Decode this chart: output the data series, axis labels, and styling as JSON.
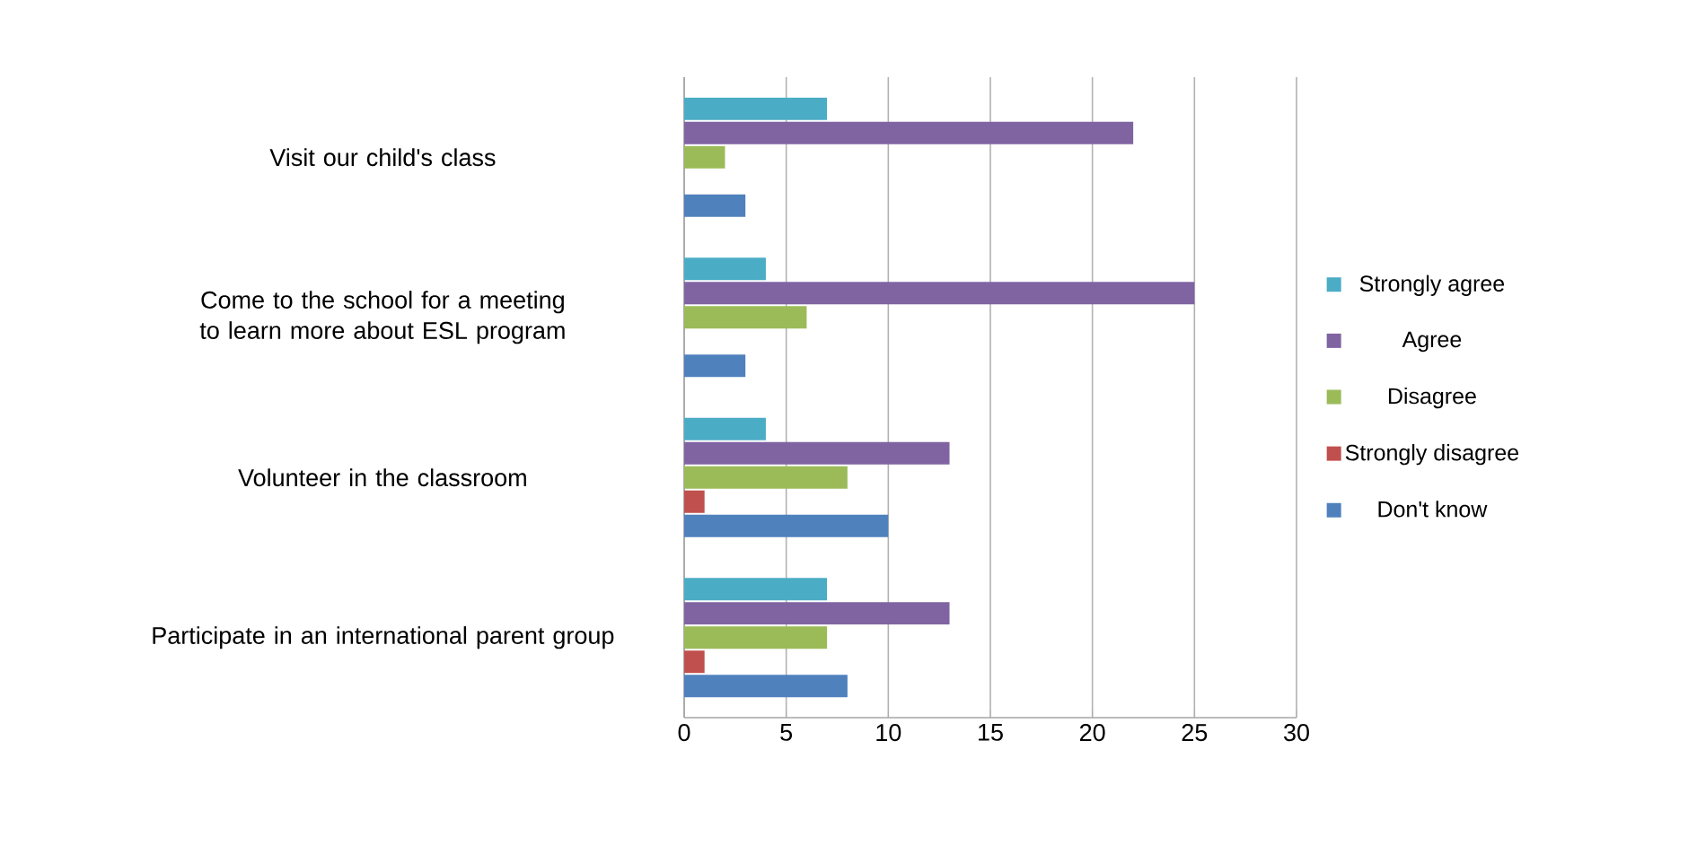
{
  "chart_data": {
    "type": "bar",
    "orientation": "horizontal",
    "categories": [
      "Visit our child's class",
      "Come to the school for a meeting to learn more about ESL program",
      "Volunteer in the classroom",
      "Participate in an international parent group"
    ],
    "series": [
      {
        "name": "Strongly agree",
        "color": "#4bacc6",
        "values": [
          7,
          4,
          4,
          7
        ]
      },
      {
        "name": "Agree",
        "color": "#8064a2",
        "values": [
          22,
          25,
          13,
          13
        ]
      },
      {
        "name": "Disagree",
        "color": "#9bbb59",
        "values": [
          2,
          6,
          8,
          7
        ]
      },
      {
        "name": "Strongly disagree",
        "color": "#c0504d",
        "values": [
          0,
          0,
          1,
          1
        ]
      },
      {
        "name": "Don't know",
        "color": "#4f81bd",
        "values": [
          3,
          3,
          10,
          8
        ]
      }
    ],
    "xlim": [
      0,
      30
    ],
    "xticks": [
      0,
      5,
      10,
      15,
      20,
      25,
      30
    ],
    "grid": "x",
    "legend": "right"
  }
}
